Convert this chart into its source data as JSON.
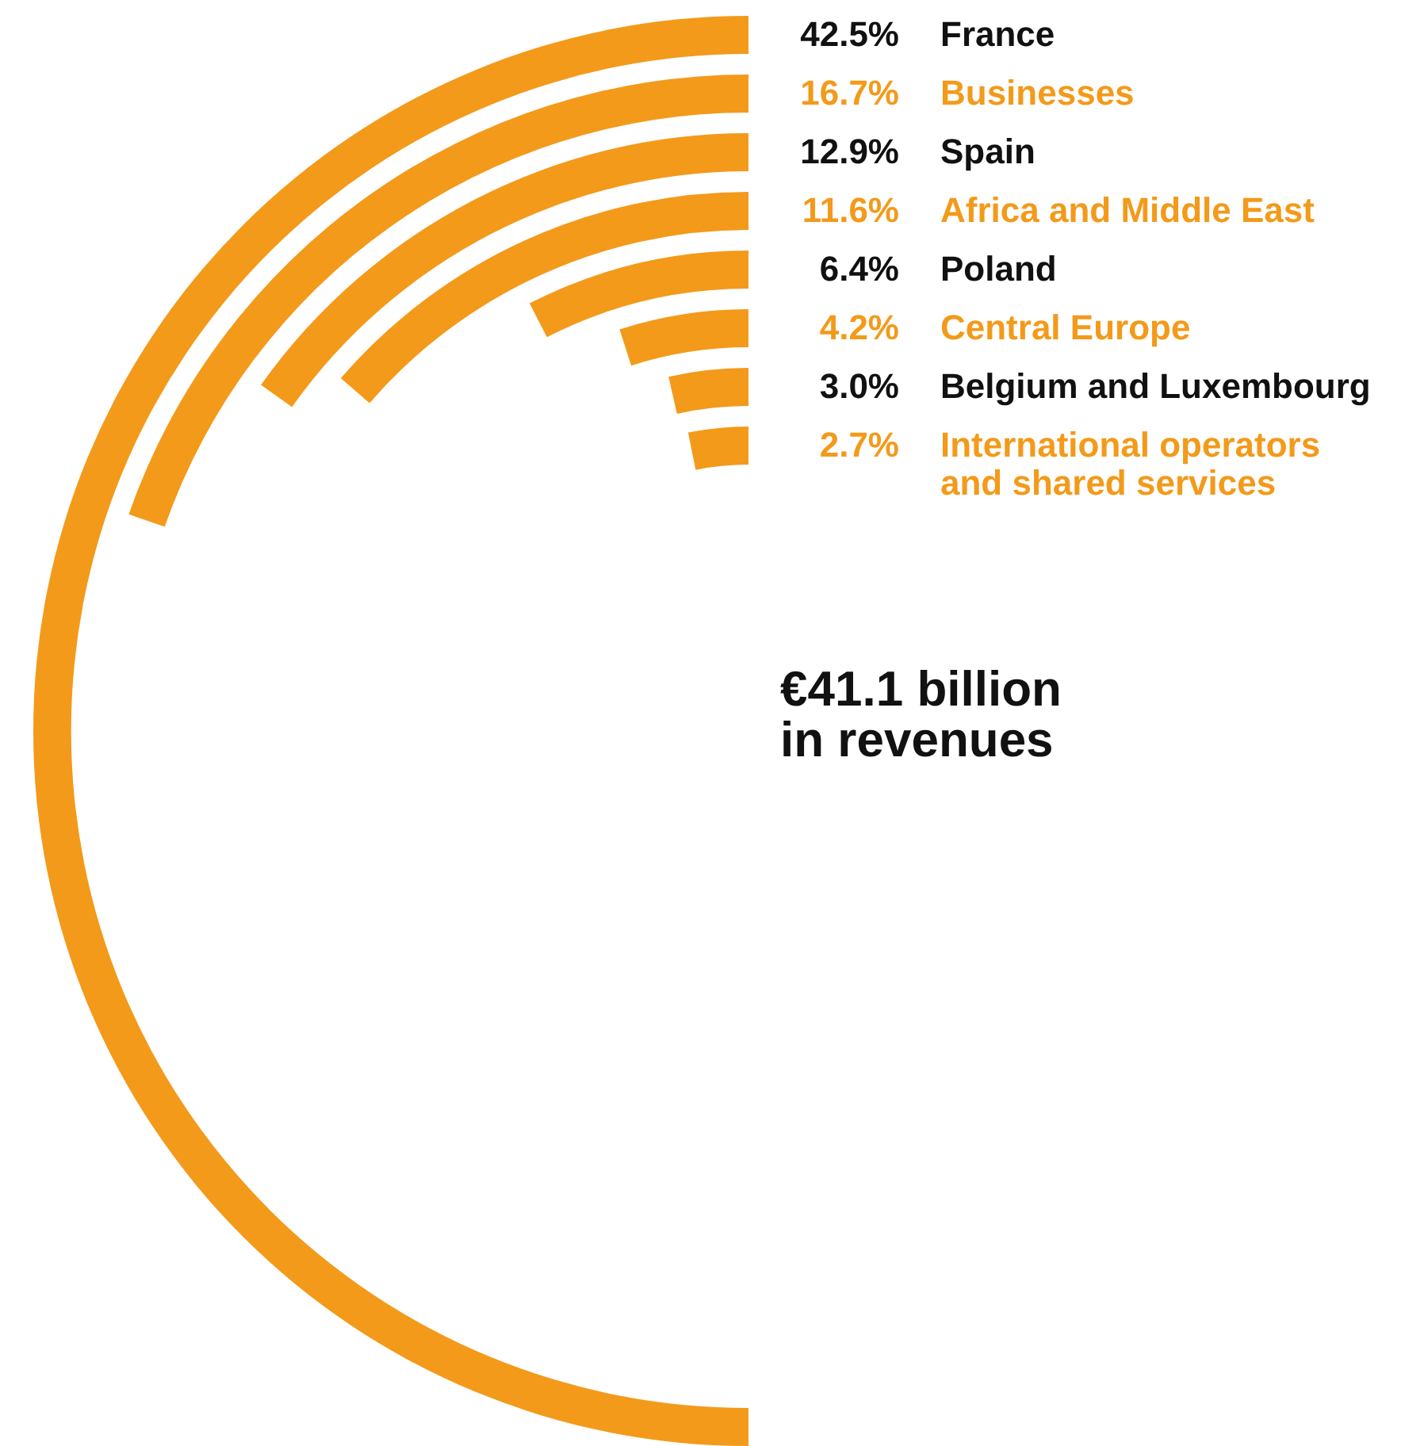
{
  "chart_data": {
    "type": "other",
    "categories": [
      "France",
      "Businesses",
      "Spain",
      "Africa and Middle East",
      "Poland",
      "Central Europe",
      "Belgium and Luxembourg",
      "International operators and shared services"
    ],
    "values": [
      42.5,
      16.7,
      12.9,
      11.6,
      6.4,
      4.2,
      3.0,
      2.7
    ],
    "value_labels": [
      "42.5%",
      "16.7%",
      "12.9%",
      "11.6%",
      "6.4%",
      "4.2%",
      "3.0%",
      "2.7%"
    ],
    "colors": [
      "#f39a1a",
      "#f39a1a",
      "#f39a1a",
      "#f39a1a",
      "#f39a1a",
      "#f39a1a",
      "#f39a1a",
      "#f39a1a"
    ],
    "annotations": [
      "€41.1 billion in revenues"
    ]
  }
}
